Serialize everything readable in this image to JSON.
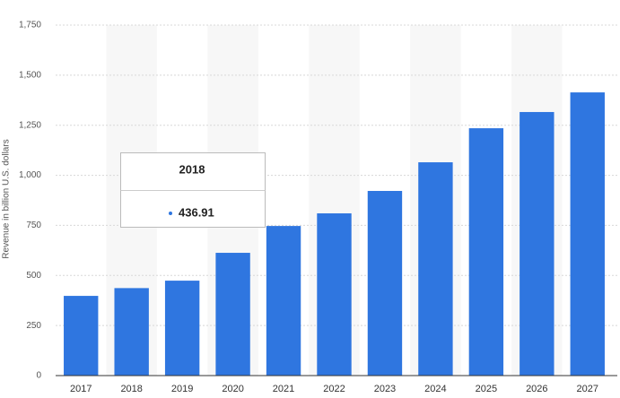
{
  "chart_data": {
    "type": "bar",
    "y_label": "Revenue in billion U.S. dollars",
    "categories": [
      "2017",
      "2018",
      "2019",
      "2020",
      "2021",
      "2022",
      "2023",
      "2024",
      "2025",
      "2026",
      "2027"
    ],
    "values": [
      398,
      436.91,
      474,
      613,
      747,
      810,
      922,
      1065,
      1235,
      1316,
      1414
    ],
    "color": "#2f76e0",
    "ylim": [
      0,
      1750
    ],
    "yticks": [
      0,
      250,
      500,
      750,
      {
        "value": 1000,
        "label": "1,000"
      },
      {
        "value": 1250,
        "label": "1,250"
      },
      {
        "value": 1500,
        "label": "1,500"
      },
      {
        "value": 1750,
        "label": "1,750"
      }
    ],
    "grid": true,
    "tooltip": {
      "category_index": 1
    }
  }
}
